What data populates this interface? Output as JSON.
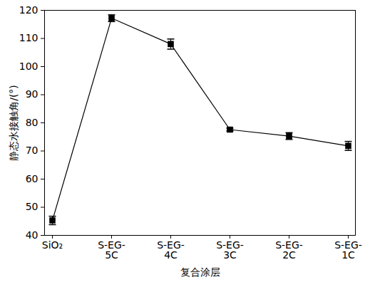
{
  "chart_data": {
    "type": "line",
    "categories": [
      "SiO₂",
      "S-EG-5C",
      "S-EG-4C",
      "S-EG-3C",
      "S-EG-2C",
      "S-EG-1C"
    ],
    "values": [
      45.3,
      117.2,
      108.0,
      77.6,
      75.3,
      71.8
    ],
    "errors": [
      1.5,
      1.2,
      1.8,
      0.5,
      1.2,
      1.6
    ],
    "xlabel": "复合涂层",
    "ylabel": "静态水接触角/(°)",
    "ylim": [
      40,
      120
    ],
    "yticks": [
      40,
      50,
      60,
      70,
      80,
      90,
      100,
      110,
      120
    ],
    "color": "#000000",
    "marker": "square",
    "grid": false
  }
}
